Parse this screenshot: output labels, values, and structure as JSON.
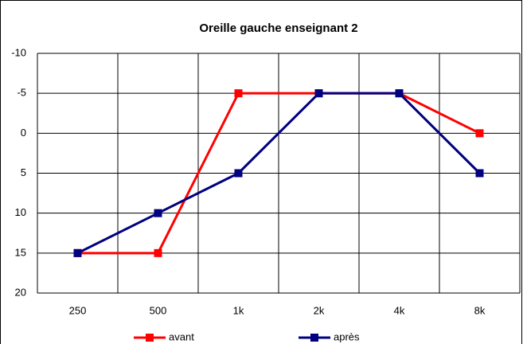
{
  "chart_data": {
    "type": "line",
    "title": "Oreille gauche enseignant 2",
    "categories": [
      "250",
      "500",
      "1k",
      "2k",
      "4k",
      "8k"
    ],
    "series": [
      {
        "name": "avant",
        "color": "#ff0000",
        "values": [
          15,
          15,
          -5,
          -5,
          -5,
          0
        ]
      },
      {
        "name": "après",
        "color": "#000080",
        "values": [
          15,
          10,
          5,
          -5,
          -5,
          5
        ]
      }
    ],
    "ylim": [
      20,
      -10
    ],
    "yticks": [
      -10,
      -5,
      0,
      5,
      10,
      15,
      20
    ],
    "grid": true
  }
}
